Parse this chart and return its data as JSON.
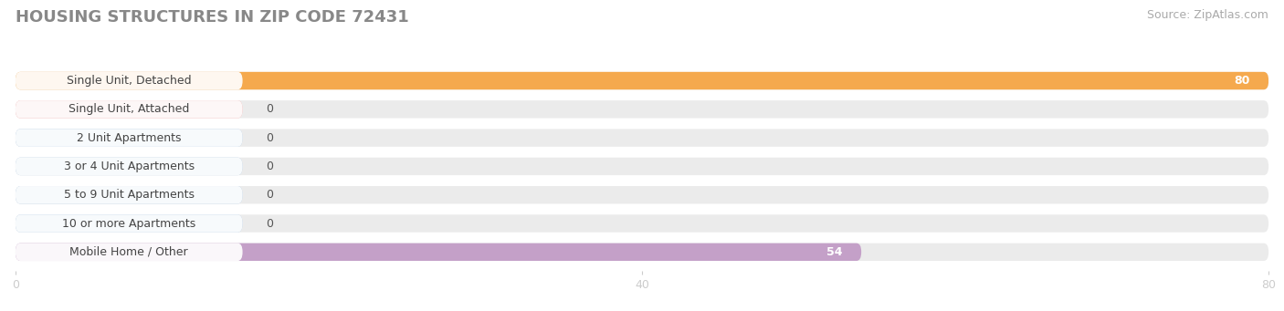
{
  "title": "HOUSING STRUCTURES IN ZIP CODE 72431",
  "source": "Source: ZipAtlas.com",
  "categories": [
    "Single Unit, Detached",
    "Single Unit, Attached",
    "2 Unit Apartments",
    "3 or 4 Unit Apartments",
    "5 to 9 Unit Apartments",
    "10 or more Apartments",
    "Mobile Home / Other"
  ],
  "values": [
    80,
    0,
    0,
    0,
    0,
    0,
    54
  ],
  "bar_colors": [
    "#F5A94E",
    "#F1A0A0",
    "#A8C4E0",
    "#A8C4E0",
    "#A8C4E0",
    "#A8C4E0",
    "#C4A0C8"
  ],
  "label_colors": [
    "white",
    "black",
    "black",
    "black",
    "black",
    "black",
    "white"
  ],
  "xlim": [
    0,
    80
  ],
  "xticks": [
    0,
    40,
    80
  ],
  "background_color": "#ffffff",
  "bar_background_color": "#ebebeb",
  "title_fontsize": 13,
  "source_fontsize": 9,
  "bar_label_fontsize": 9,
  "category_label_fontsize": 9
}
